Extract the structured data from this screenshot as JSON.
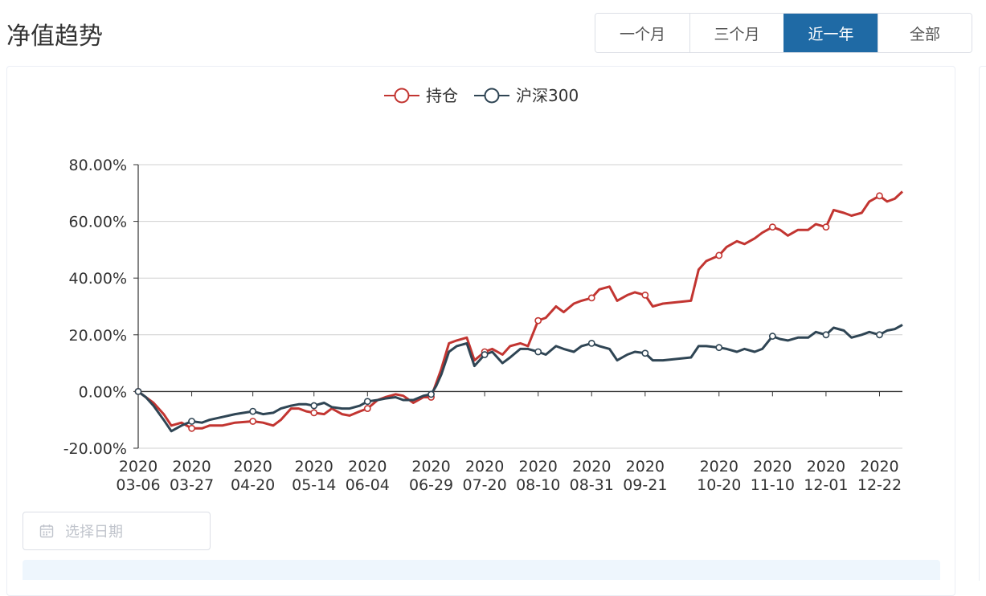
{
  "header": {
    "title": "净值趋势",
    "ranges": [
      {
        "label": "一个月",
        "active": false
      },
      {
        "label": "三个月",
        "active": false
      },
      {
        "label": "近一年",
        "active": true
      },
      {
        "label": "全部",
        "active": false
      }
    ]
  },
  "date_picker": {
    "placeholder": "选择日期"
  },
  "colors": {
    "holding": "#c23531",
    "hs300": "#2f4554",
    "active_button": "#1f6aa5"
  },
  "chart_data": {
    "type": "line",
    "title": "",
    "xlabel": "",
    "ylabel": "",
    "ylim": [
      -20,
      80
    ],
    "yticks": [
      -20,
      0,
      20,
      40,
      60,
      80
    ],
    "ytick_labels": [
      "-20.00%",
      "0.00%",
      "20.00%",
      "40.00%",
      "60.00%",
      "80.00%"
    ],
    "xlim": [
      "2020-03-06",
      "2020-12-31"
    ],
    "xticks": [
      "2020-03-06",
      "2020-03-27",
      "2020-04-20",
      "2020-05-14",
      "2020-06-04",
      "2020-06-29",
      "2020-07-20",
      "2020-08-10",
      "2020-08-31",
      "2020-09-21",
      "2020-10-20",
      "2020-11-10",
      "2020-12-01",
      "2020-12-22"
    ],
    "xtick_labels": [
      [
        "2020",
        "03-06"
      ],
      [
        "2020",
        "03-27"
      ],
      [
        "2020",
        "04-20"
      ],
      [
        "2020",
        "05-14"
      ],
      [
        "2020",
        "06-04"
      ],
      [
        "2020",
        "06-29"
      ],
      [
        "2020",
        "07-20"
      ],
      [
        "2020",
        "08-10"
      ],
      [
        "2020",
        "08-31"
      ],
      [
        "2020",
        "09-21"
      ],
      [
        "2020",
        "10-20"
      ],
      [
        "2020",
        "11-10"
      ],
      [
        "2020",
        "12-01"
      ],
      [
        "2020",
        "12-22"
      ]
    ],
    "legend_position": "top-center",
    "grid": true,
    "series": [
      {
        "name": "持仓",
        "points": [
          [
            "2020-03-06",
            0
          ],
          [
            "2020-03-09",
            -2
          ],
          [
            "2020-03-12",
            -4
          ],
          [
            "2020-03-16",
            -8
          ],
          [
            "2020-03-19",
            -12
          ],
          [
            "2020-03-23",
            -11
          ],
          [
            "2020-03-27",
            -13
          ],
          [
            "2020-03-31",
            -13
          ],
          [
            "2020-04-03",
            -12
          ],
          [
            "2020-04-08",
            -12
          ],
          [
            "2020-04-13",
            -11
          ],
          [
            "2020-04-20",
            -10.5
          ],
          [
            "2020-04-24",
            -11
          ],
          [
            "2020-04-28",
            -12
          ],
          [
            "2020-05-01",
            -10
          ],
          [
            "2020-05-05",
            -6
          ],
          [
            "2020-05-08",
            -6
          ],
          [
            "2020-05-11",
            -7
          ],
          [
            "2020-05-14",
            -7.5
          ],
          [
            "2020-05-18",
            -8
          ],
          [
            "2020-05-21",
            -6
          ],
          [
            "2020-05-25",
            -8
          ],
          [
            "2020-05-28",
            -8.5
          ],
          [
            "2020-06-01",
            -7
          ],
          [
            "2020-06-04",
            -6
          ],
          [
            "2020-06-08",
            -3
          ],
          [
            "2020-06-11",
            -2
          ],
          [
            "2020-06-15",
            -1
          ],
          [
            "2020-06-18",
            -1.5
          ],
          [
            "2020-06-22",
            -4
          ],
          [
            "2020-06-26",
            -2
          ],
          [
            "2020-06-29",
            -2
          ],
          [
            "2020-07-01",
            3
          ],
          [
            "2020-07-03",
            8
          ],
          [
            "2020-07-06",
            17
          ],
          [
            "2020-07-09",
            18
          ],
          [
            "2020-07-13",
            19
          ],
          [
            "2020-07-16",
            11
          ],
          [
            "2020-07-20",
            14
          ],
          [
            "2020-07-23",
            15
          ],
          [
            "2020-07-27",
            13
          ],
          [
            "2020-07-30",
            16
          ],
          [
            "2020-08-03",
            17
          ],
          [
            "2020-08-06",
            16
          ],
          [
            "2020-08-10",
            25
          ],
          [
            "2020-08-13",
            26
          ],
          [
            "2020-08-17",
            30
          ],
          [
            "2020-08-20",
            28
          ],
          [
            "2020-08-24",
            31
          ],
          [
            "2020-08-27",
            32
          ],
          [
            "2020-08-31",
            33
          ],
          [
            "2020-09-03",
            36
          ],
          [
            "2020-09-07",
            37
          ],
          [
            "2020-09-10",
            32
          ],
          [
            "2020-09-14",
            34
          ],
          [
            "2020-09-17",
            35
          ],
          [
            "2020-09-21",
            34
          ],
          [
            "2020-09-24",
            30
          ],
          [
            "2020-09-28",
            31
          ],
          [
            "2020-10-09",
            32
          ],
          [
            "2020-10-12",
            43
          ],
          [
            "2020-10-15",
            46
          ],
          [
            "2020-10-20",
            48
          ],
          [
            "2020-10-23",
            51
          ],
          [
            "2020-10-27",
            53
          ],
          [
            "2020-10-30",
            52
          ],
          [
            "2020-11-03",
            54
          ],
          [
            "2020-11-06",
            56
          ],
          [
            "2020-11-10",
            58
          ],
          [
            "2020-11-13",
            57
          ],
          [
            "2020-11-16",
            55
          ],
          [
            "2020-11-20",
            57
          ],
          [
            "2020-11-24",
            57
          ],
          [
            "2020-11-27",
            59
          ],
          [
            "2020-12-01",
            58
          ],
          [
            "2020-12-04",
            64
          ],
          [
            "2020-12-08",
            63
          ],
          [
            "2020-12-11",
            62
          ],
          [
            "2020-12-15",
            63
          ],
          [
            "2020-12-18",
            67
          ],
          [
            "2020-12-22",
            69
          ],
          [
            "2020-12-25",
            67
          ],
          [
            "2020-12-28",
            68
          ],
          [
            "2020-12-31",
            70.5
          ]
        ],
        "markers": [
          "2020-03-06",
          "2020-03-27",
          "2020-04-20",
          "2020-05-14",
          "2020-06-04",
          "2020-06-29",
          "2020-07-20",
          "2020-08-10",
          "2020-08-31",
          "2020-09-21",
          "2020-10-20",
          "2020-11-10",
          "2020-12-01",
          "2020-12-22"
        ]
      },
      {
        "name": "沪深300",
        "points": [
          [
            "2020-03-06",
            0
          ],
          [
            "2020-03-09",
            -2
          ],
          [
            "2020-03-12",
            -5
          ],
          [
            "2020-03-16",
            -10
          ],
          [
            "2020-03-19",
            -14
          ],
          [
            "2020-03-23",
            -12
          ],
          [
            "2020-03-27",
            -10.5
          ],
          [
            "2020-03-31",
            -11
          ],
          [
            "2020-04-03",
            -10
          ],
          [
            "2020-04-08",
            -9
          ],
          [
            "2020-04-13",
            -8
          ],
          [
            "2020-04-20",
            -7
          ],
          [
            "2020-04-24",
            -8
          ],
          [
            "2020-04-28",
            -7.5
          ],
          [
            "2020-05-01",
            -6
          ],
          [
            "2020-05-05",
            -5
          ],
          [
            "2020-05-08",
            -4.5
          ],
          [
            "2020-05-11",
            -4.5
          ],
          [
            "2020-05-14",
            -5
          ],
          [
            "2020-05-18",
            -4
          ],
          [
            "2020-05-21",
            -5.5
          ],
          [
            "2020-05-25",
            -6
          ],
          [
            "2020-05-28",
            -6
          ],
          [
            "2020-06-01",
            -5
          ],
          [
            "2020-06-04",
            -3.5
          ],
          [
            "2020-06-08",
            -3
          ],
          [
            "2020-06-11",
            -2.5
          ],
          [
            "2020-06-15",
            -2
          ],
          [
            "2020-06-18",
            -3
          ],
          [
            "2020-06-22",
            -3
          ],
          [
            "2020-06-26",
            -1.5
          ],
          [
            "2020-06-29",
            -1
          ],
          [
            "2020-07-01",
            2
          ],
          [
            "2020-07-03",
            6
          ],
          [
            "2020-07-06",
            14
          ],
          [
            "2020-07-09",
            16
          ],
          [
            "2020-07-13",
            17
          ],
          [
            "2020-07-16",
            9
          ],
          [
            "2020-07-20",
            13
          ],
          [
            "2020-07-23",
            14
          ],
          [
            "2020-07-27",
            10
          ],
          [
            "2020-07-30",
            12
          ],
          [
            "2020-08-03",
            15
          ],
          [
            "2020-08-06",
            15
          ],
          [
            "2020-08-10",
            14
          ],
          [
            "2020-08-13",
            13
          ],
          [
            "2020-08-17",
            16
          ],
          [
            "2020-08-20",
            15
          ],
          [
            "2020-08-24",
            14
          ],
          [
            "2020-08-27",
            16
          ],
          [
            "2020-08-31",
            17
          ],
          [
            "2020-09-03",
            16
          ],
          [
            "2020-09-07",
            15
          ],
          [
            "2020-09-10",
            11
          ],
          [
            "2020-09-14",
            13
          ],
          [
            "2020-09-17",
            14
          ],
          [
            "2020-09-21",
            13.5
          ],
          [
            "2020-09-24",
            11
          ],
          [
            "2020-09-28",
            11
          ],
          [
            "2020-10-09",
            12
          ],
          [
            "2020-10-12",
            16
          ],
          [
            "2020-10-15",
            16
          ],
          [
            "2020-10-20",
            15.5
          ],
          [
            "2020-10-23",
            15
          ],
          [
            "2020-10-27",
            14
          ],
          [
            "2020-10-30",
            15
          ],
          [
            "2020-11-03",
            14
          ],
          [
            "2020-11-06",
            15
          ],
          [
            "2020-11-10",
            19.5
          ],
          [
            "2020-11-13",
            18.5
          ],
          [
            "2020-11-16",
            18
          ],
          [
            "2020-11-20",
            19
          ],
          [
            "2020-11-24",
            19
          ],
          [
            "2020-11-27",
            21
          ],
          [
            "2020-12-01",
            20
          ],
          [
            "2020-12-04",
            22.5
          ],
          [
            "2020-12-08",
            21.5
          ],
          [
            "2020-12-11",
            19
          ],
          [
            "2020-12-15",
            20
          ],
          [
            "2020-12-18",
            21
          ],
          [
            "2020-12-22",
            20
          ],
          [
            "2020-12-25",
            21.5
          ],
          [
            "2020-12-28",
            22
          ],
          [
            "2020-12-31",
            23.5
          ]
        ],
        "markers": [
          "2020-03-06",
          "2020-03-27",
          "2020-04-20",
          "2020-05-14",
          "2020-06-04",
          "2020-06-29",
          "2020-07-20",
          "2020-08-10",
          "2020-08-31",
          "2020-09-21",
          "2020-10-20",
          "2020-11-10",
          "2020-12-01",
          "2020-12-22"
        ]
      }
    ]
  }
}
